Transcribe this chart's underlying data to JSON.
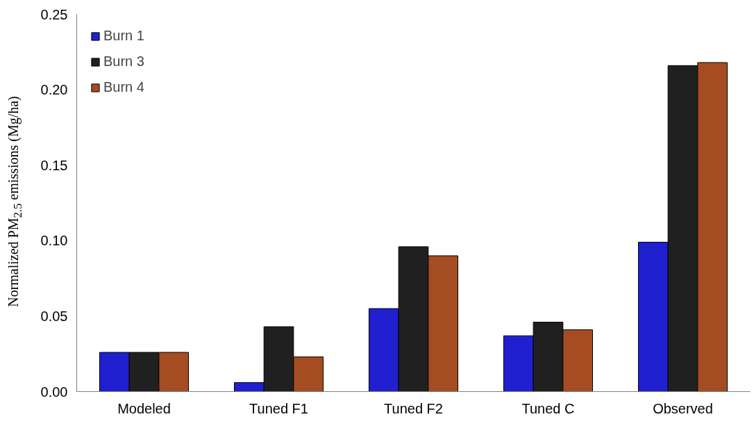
{
  "chart_data": {
    "type": "bar",
    "ylabel": "Normalized PM$_{2.5}$ emissions (Mg/ha)",
    "categories": [
      "Modeled",
      "Tuned F1",
      "Tuned F2",
      "Tuned C",
      "Observed"
    ],
    "series": [
      {
        "name": "Burn 1",
        "color": "#2020d0",
        "values": [
          0.026,
          0.006,
          0.055,
          0.037,
          0.099
        ]
      },
      {
        "name": "Burn 3",
        "color": "#202020",
        "values": [
          0.026,
          0.043,
          0.096,
          0.046,
          0.216
        ]
      },
      {
        "name": "Burn 4",
        "color": "#a54c22",
        "values": [
          0.026,
          0.023,
          0.09,
          0.041,
          0.218
        ]
      }
    ],
    "ylim": [
      0,
      0.25
    ],
    "yticks": [
      {
        "value": 0,
        "label": "0.00"
      },
      {
        "value": 0.05,
        "label": "0.05"
      },
      {
        "value": 0.1,
        "label": "0.10"
      },
      {
        "value": 0.15,
        "label": "0.15"
      },
      {
        "value": 0.2,
        "label": "0.20"
      },
      {
        "value": 0.25,
        "label": "0.25"
      }
    ],
    "grid": false,
    "legend": "top left"
  }
}
